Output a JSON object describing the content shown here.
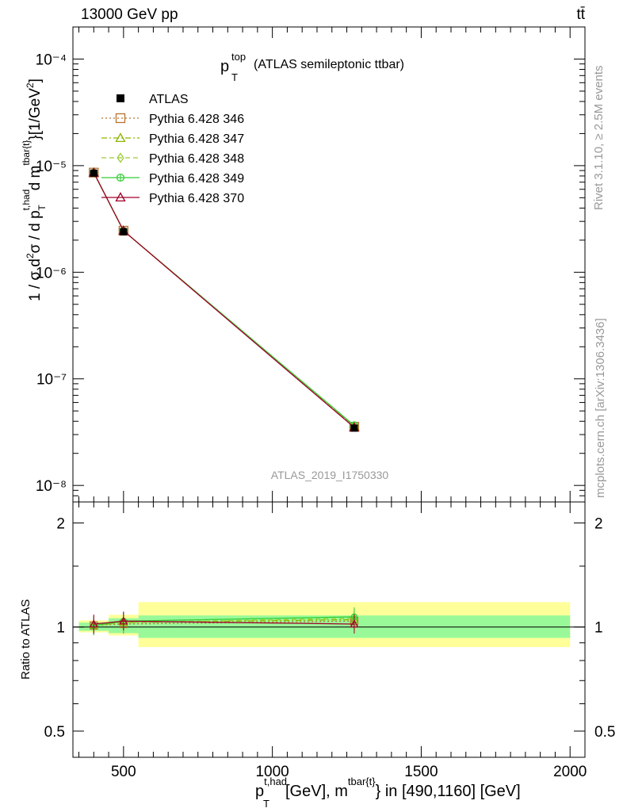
{
  "header": {
    "energy_label": "13000 GeV pp",
    "process_label": "tt̄"
  },
  "side_labels": {
    "rivet": "Rivet 3.1.10, ≥ 2.5M events",
    "mcplots": "mcplots.cern.ch [arXiv:1306.3436]"
  },
  "watermark": "ATLAS_2019_I1750330",
  "chart_data": [
    {
      "type": "line",
      "panel": "main",
      "title_main": "p",
      "title_sup": "top",
      "title_sub": "T",
      "title_rest": "(ATLAS semileptonic ttbar)",
      "ylabel": "1 / σ d²σ / d p_T^{t,had} d m^{tbar{t}} [1/GeV²]",
      "yscale": "log",
      "ylim": [
        7e-09,
        0.0002
      ],
      "xlim": [
        330,
        2050
      ],
      "yticks": [
        "10⁻⁸",
        "10⁻⁷",
        "10⁻⁶",
        "10⁻⁵",
        "10⁻⁴"
      ],
      "legend": "top-left",
      "series": [
        {
          "name": "ATLAS",
          "color": "#000000",
          "marker": "square-filled",
          "x": [
            400,
            500,
            1275
          ],
          "y": [
            8.5e-06,
            2.4e-06,
            3.45e-08
          ]
        },
        {
          "name": "Pythia 6.428 346",
          "color": "#b87333",
          "marker": "square-open",
          "dash": "dotted",
          "x": [
            400,
            500,
            1275
          ],
          "y": [
            8.6e-06,
            2.45e-06,
            3.55e-08
          ]
        },
        {
          "name": "Pythia 6.428 347",
          "color": "#8db600",
          "marker": "triangle-open",
          "dash": "dashdot",
          "x": [
            400,
            500,
            1275
          ],
          "y": [
            8.6e-06,
            2.45e-06,
            3.6e-08
          ]
        },
        {
          "name": "Pythia 6.428 348",
          "color": "#9acd32",
          "marker": "diamond-open",
          "dash": "dashed",
          "x": [
            400,
            500,
            1275
          ],
          "y": [
            8.6e-06,
            2.45e-06,
            3.6e-08
          ]
        },
        {
          "name": "Pythia 6.428 349",
          "color": "#33cc33",
          "marker": "circle-cross",
          "dash": "solid",
          "x": [
            400,
            500,
            1275
          ],
          "y": [
            8.6e-06,
            2.45e-06,
            3.65e-08
          ]
        },
        {
          "name": "Pythia 6.428 370",
          "color": "#a0002a",
          "marker": "triangle-open",
          "dash": "solid",
          "x": [
            400,
            500,
            1275
          ],
          "y": [
            8.6e-06,
            2.45e-06,
            3.5e-08
          ]
        }
      ]
    },
    {
      "type": "line",
      "panel": "ratio",
      "ylabel": "Ratio to ATLAS",
      "yscale": "log",
      "ylim": [
        0.42,
        2.3
      ],
      "xlim": [
        330,
        2050
      ],
      "yticks": [
        "0.5",
        "1",
        "2"
      ],
      "xticks": [
        "500",
        "1000",
        "1500",
        "2000"
      ],
      "xlabel": "p_T^{t,had} [GeV], m^{tbar{t}} in [490,1160] [GeV]",
      "bands": [
        {
          "x0": 350,
          "x1": 450,
          "green": [
            0.975,
            1.03
          ],
          "yellow": [
            0.965,
            1.045
          ]
        },
        {
          "x0": 450,
          "x1": 550,
          "green": [
            0.96,
            1.06
          ],
          "yellow": [
            0.945,
            1.085
          ]
        },
        {
          "x0": 550,
          "x1": 2000,
          "green": [
            0.93,
            1.08
          ],
          "yellow": [
            0.875,
            1.18
          ]
        }
      ],
      "series": [
        {
          "name": "Pythia 6.428 346",
          "color": "#b87333",
          "dash": "dotted",
          "marker": "square-open",
          "x": [
            400,
            500,
            1275
          ],
          "y": [
            1.01,
            1.02,
            1.04
          ]
        },
        {
          "name": "Pythia 6.428 347",
          "color": "#8db600",
          "dash": "dashdot",
          "marker": "triangle-open",
          "x": [
            400,
            500,
            1275
          ],
          "y": [
            1.01,
            1.03,
            1.05
          ]
        },
        {
          "name": "Pythia 6.428 348",
          "color": "#9acd32",
          "dash": "dashed",
          "marker": "diamond-open",
          "x": [
            400,
            500,
            1275
          ],
          "y": [
            1.01,
            1.03,
            1.06
          ]
        },
        {
          "name": "Pythia 6.428 349",
          "color": "#33cc33",
          "dash": "solid",
          "marker": "circle-cross",
          "x": [
            400,
            500,
            1275
          ],
          "y": [
            1.01,
            1.04,
            1.07
          ]
        },
        {
          "name": "Pythia 6.428 370",
          "color": "#a0002a",
          "dash": "solid",
          "marker": "triangle-open",
          "x": [
            400,
            500,
            1275
          ],
          "y": [
            1.02,
            1.04,
            1.02
          ]
        }
      ]
    }
  ]
}
